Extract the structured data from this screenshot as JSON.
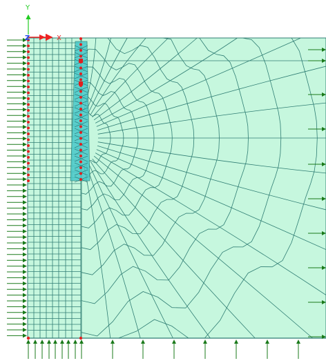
{
  "viewport": {
    "axis_labels": {
      "y": "Y",
      "x": "X",
      "z": "Z"
    },
    "colors": {
      "background": "#ffffff",
      "mesh_fill": "#c6f7de",
      "mesh_line": "#2f7d73",
      "pile_fill": "#49c9c9",
      "load_arrow": "#1a7a1a",
      "node_marker": "#e02020",
      "axis_y": "#22cc22",
      "axis_x": "#ee2222",
      "axis_z": "#2244ee"
    },
    "icons": {
      "triad": "axis-triad-icon",
      "node": "node-marker-icon",
      "load": "load-arrow-icon"
    }
  }
}
